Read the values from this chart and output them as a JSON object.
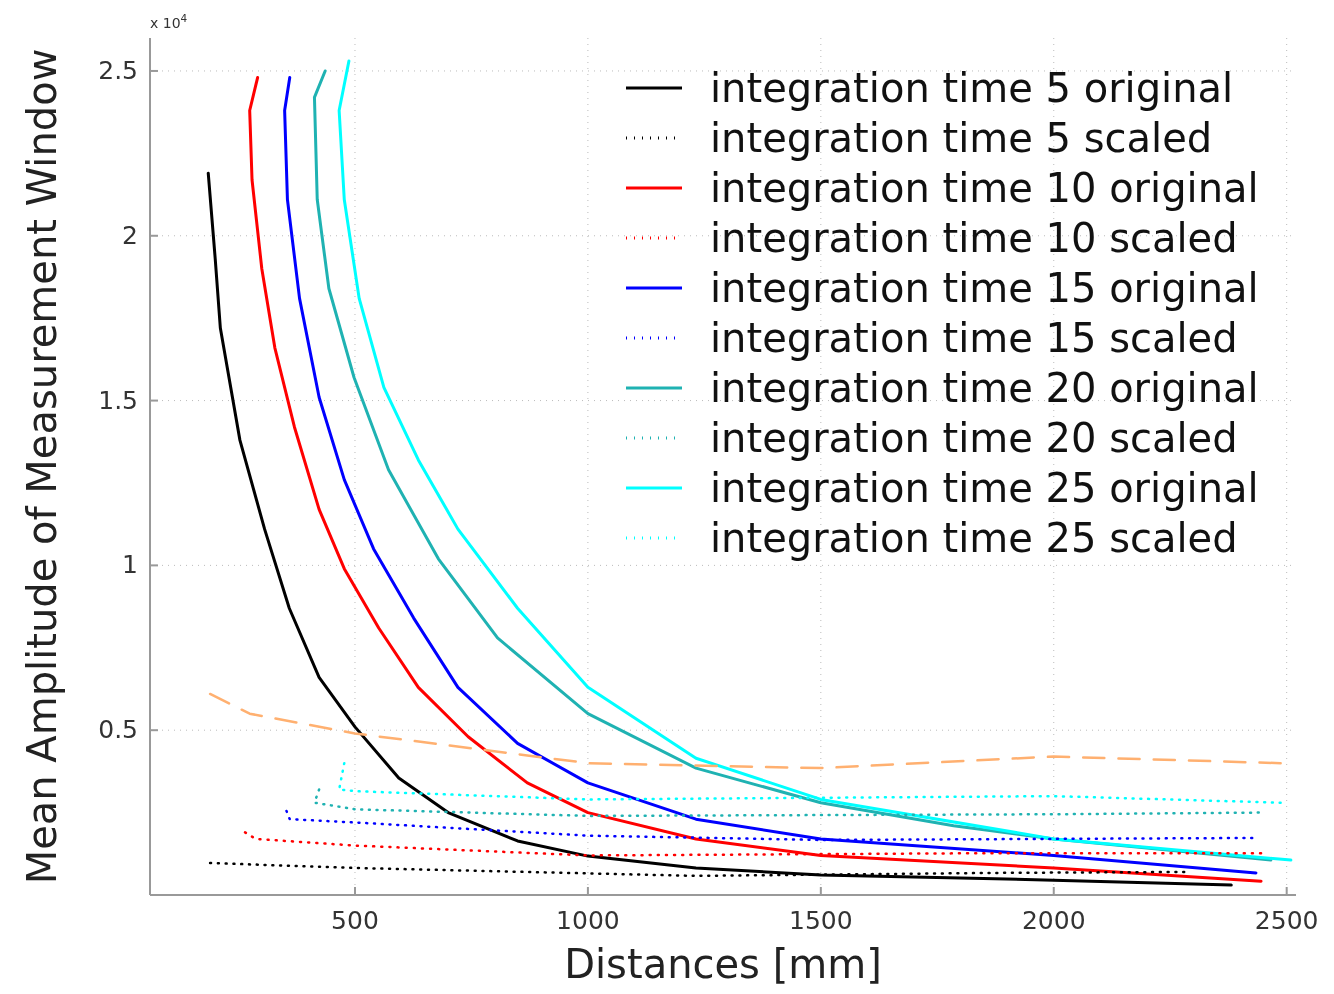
{
  "chart_data": {
    "type": "line",
    "xlabel": "Distances [mm]",
    "ylabel": "Mean Amplitude of Measurement Window",
    "annotations": [
      "x 10$^{4}$"
    ],
    "xlim": [
      60,
      2520
    ],
    "xticks": [
      500,
      1000,
      1500,
      2000,
      2500
    ],
    "ylim": [
      0,
      2.6
    ],
    "yticks": [
      0.5,
      1,
      1.5,
      2,
      2.5
    ],
    "grid": true,
    "legend": "top right",
    "marker": "none",
    "series": [
      {
        "name": "integration time 5 original",
        "color": "#000000",
        "line_style": "solid",
        "x": [
          185,
          200,
          211,
          253,
          306,
          359,
          423,
          500,
          594,
          700,
          849,
          1000,
          1232,
          1500,
          2000,
          2381
        ],
        "values": [
          2.19,
          1.93,
          1.72,
          1.38,
          1.11,
          0.87,
          0.66,
          0.51,
          0.355,
          0.25,
          0.164,
          0.118,
          0.082,
          0.061,
          0.045,
          0.03
        ]
      },
      {
        "name": "integration time 5 scaled",
        "color": "#000000",
        "line_style": "dotted",
        "x": [
          189,
          500,
          1232,
          1870,
          2280
        ],
        "values": [
          0.097,
          0.082,
          0.058,
          0.067,
          0.07
        ]
      },
      {
        "name": "integration time 10 original",
        "color": "#ff0000",
        "line_style": "solid",
        "x": [
          291,
          274,
          279,
          300,
          328,
          370,
          423,
          477,
          551,
          636,
          743,
          870,
          1000,
          1232,
          1500,
          2000,
          2445
        ],
        "values": [
          2.48,
          2.38,
          2.17,
          1.9,
          1.66,
          1.42,
          1.17,
          0.99,
          0.81,
          0.63,
          0.48,
          0.34,
          0.25,
          0.17,
          0.12,
          0.082,
          0.042
        ]
      },
      {
        "name": "integration time 10 scaled",
        "color": "#ff0000",
        "line_style": "dotted",
        "x": [
          264,
          287,
          500,
          1000,
          1870,
          2445
        ],
        "values": [
          0.19,
          0.17,
          0.15,
          0.12,
          0.127,
          0.127
        ]
      },
      {
        "name": "integration time 15 original",
        "color": "#0000ff",
        "line_style": "solid",
        "x": [
          360,
          349,
          355,
          381,
          423,
          477,
          540,
          626,
          721,
          849,
          1000,
          1232,
          1500,
          2000,
          2434
        ],
        "values": [
          2.48,
          2.38,
          2.11,
          1.81,
          1.51,
          1.26,
          1.05,
          0.84,
          0.63,
          0.46,
          0.34,
          0.23,
          0.17,
          0.12,
          0.067
        ]
      },
      {
        "name": "integration time 15 scaled",
        "color": "#0000ff",
        "line_style": "dotted",
        "x": [
          353,
          360,
          500,
          1000,
          1500,
          2426
        ],
        "values": [
          0.255,
          0.23,
          0.22,
          0.18,
          0.167,
          0.173
        ]
      },
      {
        "name": "integration time 20 original",
        "color": "#1fb2b2",
        "line_style": "solid",
        "x": [
          436,
          413,
          419,
          444,
          498,
          572,
          679,
          806,
          1000,
          1232,
          1500,
          1785,
          2000,
          2466
        ],
        "values": [
          2.5,
          2.42,
          2.11,
          1.84,
          1.57,
          1.29,
          1.02,
          0.78,
          0.55,
          0.385,
          0.28,
          0.21,
          0.17,
          0.106
        ]
      },
      {
        "name": "integration time 20 scaled",
        "color": "#1fb2b2",
        "line_style": "dotted",
        "x": [
          423,
          413,
          500,
          1000,
          2000,
          2440
        ],
        "values": [
          0.32,
          0.28,
          0.26,
          0.24,
          0.245,
          0.25
        ]
      },
      {
        "name": "integration time 25 original",
        "color": "#00ffff",
        "line_style": "solid",
        "x": [
          487,
          466,
          477,
          509,
          562,
          636,
          721,
          849,
          1000,
          1232,
          1500,
          2000,
          2509
        ],
        "values": [
          2.53,
          2.38,
          2.11,
          1.81,
          1.54,
          1.32,
          1.11,
          0.87,
          0.63,
          0.415,
          0.29,
          0.17,
          0.106
        ]
      },
      {
        "name": "integration time 25 scaled",
        "color": "#00ffff",
        "line_style": "dotted",
        "x": [
          477,
          466,
          500,
          1000,
          2000,
          2487
        ],
        "values": [
          0.4,
          0.32,
          0.315,
          0.29,
          0.3,
          0.28
        ]
      },
      {
        "color": "#ffb070",
        "line_style": "dashed",
        "x": [
          189,
          274,
          500,
          1000,
          1500,
          2000,
          2487
        ],
        "values": [
          0.61,
          0.55,
          0.49,
          0.4,
          0.385,
          0.42,
          0.4
        ]
      }
    ]
  }
}
